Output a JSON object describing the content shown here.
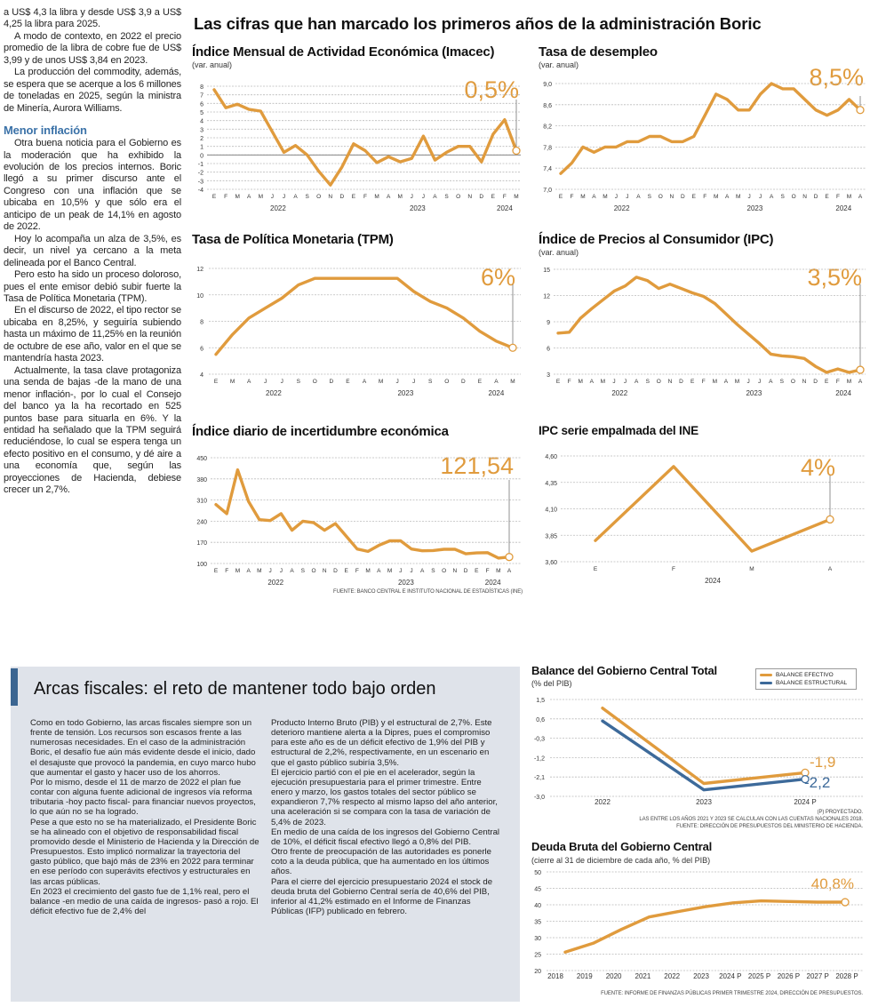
{
  "left_column": {
    "paragraphs_before": [
      "a US$ 4,3 la libra y desde US$ 3,9 a US$ 4,25 la libra para 2025.",
      "A modo de contexto, en 2022 el precio promedio de la libra de cobre fue de US$ 3,99 y de unos US$ 3,84 en 2023.",
      "La producción del commodity, además, se espera que se acerque a los 6 millones de toneladas en 2025, según la ministra de Minería, Aurora Williams."
    ],
    "subheading": "Menor inflación",
    "paragraphs_after": [
      "Otra buena noticia para el Gobierno es la moderación que ha exhibido la evolución de los precios internos. Boric llegó a su primer discurso ante el Congreso con una inflación que se ubicaba en 10,5% y que sólo era el anticipo de un peak de 14,1% en agosto de 2022.",
      "Hoy lo acompaña un alza de 3,5%, es decir, un nivel ya cercano a la meta delineada por el Banco Central.",
      "Pero esto ha sido un proceso doloroso, pues el ente emisor debió subir fuerte la Tasa de Política Monetaria (TPM).",
      "En el discurso de 2022, el tipo rector se ubicaba en 8,25%, y seguiría subiendo hasta un máximo de 11,25% en la reunión de octubre de ese año, valor en el que se mantendría hasta 2023.",
      "Actualmente, la tasa clave protagoniza una senda de bajas -de la mano de una menor inflación-, por lo cual el Consejo del banco ya la ha recortado en 525 puntos base para situarla en 6%. Y la entidad ha señalado que la TPM seguirá reduciéndose, lo cual se espera tenga un efecto positivo en el consumo, y dé aire a una economía que, según las proyecciones de Hacienda, debiese crecer un 2,7%."
    ]
  },
  "headline": "Las cifras que han marcado los primeros años de la administración Boric",
  "colors": {
    "line": "#e09b3d",
    "structural": "#3d6a9a",
    "box_bg": "#dfe3ea",
    "accent": "#3b6591",
    "subheading": "#3b72a8"
  },
  "box": {
    "title": "Arcas fiscales: el reto de mantener todo bajo orden",
    "col1": [
      "Como en todo Gobierno, las arcas fiscales siempre son un frente de tensión. Los recursos son escasos frente a las numerosas necesidades. En el caso de la administración Boric, el desafío fue aún más evidente desde el inicio, dado el desajuste que provocó la pandemia, en cuyo marco hubo que aumentar el gasto y hacer uso de los ahorros.",
      "Por lo mismo, desde el 11 de marzo de 2022 el plan fue contar con alguna fuente adicional de ingresos vía reforma tributaria -hoy pacto fiscal- para financiar nuevos proyectos, lo que aún no se ha logrado.",
      "Pese a que esto no se ha materializado, el Presidente Boric se ha alineado con el objetivo de responsabilidad fiscal promovido desde el Ministerio de Hacienda y la Dirección de Presupuestos. Esto implicó normalizar la trayectoria del gasto público, que bajó más de 23% en 2022 para terminar en ese período con superávits efectivos y estructurales en las arcas públicas.",
      "En 2023 el crecimiento del gasto fue de 1,1% real, pero el balance -en medio de una caída de ingresos- pasó a rojo. El déficit efectivo fue de 2,4% del"
    ],
    "col2": [
      "Producto Interno Bruto (PIB) y el estructural de 2,7%. Este deterioro mantiene alerta a la Dipres, pues el compromiso para este año es de un déficit efectivo de 1,9% del PIB y estructural de 2,2%, respectivamente, en un escenario en que el gasto público subiría 3,5%.",
      "El ejercicio partió con el pie en el acelerador, según la ejecución presupuestaria para el primer trimestre. Entre enero y marzo, los gastos totales del sector público se expandieron 7,7% respecto al mismo lapso del año anterior, una aceleración si se compara con la tasa de variación de 5,4% de 2023.",
      "En medio de una caída de los ingresos del Gobierno Central de 10%, el déficit fiscal efectivo llegó a 0,8% del PIB.",
      "Otro frente de preocupación de las autoridades es ponerle coto a la deuda pública, que ha aumentado en los últimos años.",
      "Para el cierre del ejercicio presupuestario 2024 el stock de deuda bruta del Gobierno Central sería de 40,6% del PIB, inferior al 41,2% estimado en el Informe de Finanzas Públicas (IFP) publicado en febrero."
    ]
  },
  "chart_data": [
    {
      "type": "line",
      "title": "Índice Mensual de Actividad Económica (Imacec)",
      "subtitle": "(var. anual)",
      "callout": "0,5%",
      "ylim": [
        -4,
        8
      ],
      "yticks": [
        8,
        7,
        6,
        5,
        4,
        3,
        2,
        1,
        0,
        -1,
        -2,
        -3,
        -4
      ],
      "ytick_labels": [
        "8",
        "7",
        "6",
        "5",
        "4",
        "3",
        "2",
        "1",
        "0",
        "-1",
        "-2",
        "-3",
        "-4"
      ],
      "x": [
        "E",
        "F",
        "M",
        "A",
        "M",
        "J",
        "J",
        "A",
        "S",
        "O",
        "N",
        "D",
        "E",
        "F",
        "M",
        "A",
        "M",
        "J",
        "J",
        "A",
        "S",
        "O",
        "N",
        "D",
        "E",
        "F",
        "M"
      ],
      "years": [
        {
          "label": "2022",
          "from": 0,
          "to": 11
        },
        {
          "label": "2023",
          "from": 12,
          "to": 23
        },
        {
          "label": "2024",
          "from": 24,
          "to": 26
        }
      ],
      "values": [
        7.6,
        5.5,
        5.9,
        5.3,
        5.1,
        2.7,
        0.3,
        1.1,
        0.0,
        -1.9,
        -3.5,
        -1.4,
        1.3,
        0.5,
        -0.9,
        -0.2,
        -0.8,
        -0.4,
        2.2,
        -0.6,
        0.3,
        1.0,
        1.0,
        -0.8,
        2.4,
        4.1,
        0.5
      ],
      "zero_line": true,
      "grid": true
    },
    {
      "type": "line",
      "title": "Tasa de desempleo",
      "subtitle": "(var. anual)",
      "callout": "8,5%",
      "ylim": [
        7.0,
        9.0
      ],
      "yticks": [
        9.0,
        8.6,
        8.2,
        7.8,
        7.4,
        7.0
      ],
      "ytick_labels": [
        "9,0",
        "8,6",
        "8,2",
        "7,8",
        "7,4",
        "7,0"
      ],
      "x": [
        "E",
        "F",
        "M",
        "A",
        "M",
        "J",
        "J",
        "A",
        "S",
        "O",
        "N",
        "D",
        "E",
        "F",
        "M",
        "A",
        "M",
        "J",
        "J",
        "A",
        "S",
        "O",
        "N",
        "D",
        "E",
        "F",
        "M",
        "A"
      ],
      "years": [
        {
          "label": "2022",
          "from": 0,
          "to": 11
        },
        {
          "label": "2023",
          "from": 12,
          "to": 23
        },
        {
          "label": "2024",
          "from": 24,
          "to": 27
        }
      ],
      "values": [
        7.3,
        7.5,
        7.8,
        7.7,
        7.8,
        7.8,
        7.9,
        7.9,
        8.0,
        8.0,
        7.9,
        7.9,
        8.0,
        8.4,
        8.8,
        8.7,
        8.5,
        8.5,
        8.8,
        9.0,
        8.9,
        8.9,
        8.7,
        8.5,
        8.4,
        8.5,
        8.7,
        8.5
      ],
      "grid": true
    },
    {
      "type": "line",
      "title": "Tasa de Política Monetaria (TPM)",
      "subtitle": "",
      "callout": "6%",
      "ylim": [
        4,
        12
      ],
      "yticks": [
        12,
        10,
        8,
        6,
        4
      ],
      "ytick_labels": [
        "12",
        "10",
        "8",
        "6",
        "4"
      ],
      "x": [
        "E",
        "M",
        "A",
        "J",
        "J",
        "S",
        "O",
        "D",
        "E",
        "A",
        "M",
        "J",
        "J",
        "S",
        "O",
        "D",
        "E",
        "A",
        "M"
      ],
      "years": [
        {
          "label": "2022",
          "from": 0,
          "to": 7
        },
        {
          "label": "2023",
          "from": 8,
          "to": 15
        },
        {
          "label": "2024",
          "from": 16,
          "to": 18
        }
      ],
      "values": [
        5.5,
        7.0,
        8.25,
        9.0,
        9.75,
        10.75,
        11.25,
        11.25,
        11.25,
        11.25,
        11.25,
        11.25,
        10.25,
        9.5,
        9.0,
        8.25,
        7.25,
        6.5,
        6.0
      ],
      "grid": true
    },
    {
      "type": "line",
      "title": "Índice de Precios al Consumidor (IPC)",
      "subtitle": "(var. anual)",
      "callout": "3,5%",
      "ylim": [
        3,
        15
      ],
      "yticks": [
        15,
        12,
        9,
        6,
        3
      ],
      "ytick_labels": [
        "15",
        "12",
        "9",
        "6",
        "3"
      ],
      "x": [
        "E",
        "F",
        "M",
        "A",
        "M",
        "J",
        "J",
        "A",
        "S",
        "O",
        "N",
        "D",
        "E",
        "F",
        "M",
        "A",
        "M",
        "J",
        "J",
        "A",
        "S",
        "O",
        "N",
        "D",
        "E",
        "F",
        "M",
        "A"
      ],
      "years": [
        {
          "label": "2022",
          "from": 0,
          "to": 11
        },
        {
          "label": "2023",
          "from": 12,
          "to": 23
        },
        {
          "label": "2024",
          "from": 24,
          "to": 27
        }
      ],
      "values": [
        7.7,
        7.8,
        9.4,
        10.5,
        11.5,
        12.5,
        13.1,
        14.1,
        13.7,
        12.8,
        13.3,
        12.8,
        12.3,
        11.9,
        11.1,
        9.9,
        8.7,
        7.6,
        6.5,
        5.3,
        5.1,
        5.0,
        4.8,
        3.9,
        3.2,
        3.6,
        3.2,
        3.5
      ],
      "grid": true
    },
    {
      "type": "line",
      "title": "Índice diario de incertidumbre económica",
      "subtitle": "",
      "callout": "121,54",
      "source": "FUENTE: BANCO CENTRAL E INSTITUTO NACIONAL DE ESTADÍSTICAS (INE)",
      "ylim": [
        100,
        450
      ],
      "yticks": [
        450,
        380,
        310,
        240,
        170,
        100
      ],
      "ytick_labels": [
        "450",
        "380",
        "310",
        "240",
        "170",
        "100"
      ],
      "x": [
        "E",
        "F",
        "M",
        "A",
        "M",
        "J",
        "J",
        "A",
        "S",
        "O",
        "N",
        "D",
        "E",
        "F",
        "M",
        "A",
        "M",
        "J",
        "J",
        "A",
        "S",
        "O",
        "N",
        "D",
        "E",
        "F",
        "M",
        "A"
      ],
      "years": [
        {
          "label": "2022",
          "from": 0,
          "to": 11
        },
        {
          "label": "2023",
          "from": 12,
          "to": 23
        },
        {
          "label": "2024",
          "from": 24,
          "to": 27
        }
      ],
      "values": [
        295,
        265,
        410,
        305,
        245,
        242,
        265,
        210,
        240,
        235,
        210,
        232,
        190,
        148,
        140,
        160,
        175,
        175,
        148,
        142,
        143,
        147,
        147,
        132,
        135,
        136,
        118,
        121.54
      ],
      "grid": true
    },
    {
      "type": "line",
      "title": "IPC serie empalmada del INE",
      "subtitle": "",
      "callout": "4%",
      "ylim": [
        3.6,
        4.6
      ],
      "yticks": [
        4.6,
        4.35,
        4.1,
        3.85,
        3.6
      ],
      "ytick_labels": [
        "4,60",
        "4,35",
        "4,10",
        "3,85",
        "3,60"
      ],
      "x": [
        "E",
        "F",
        "M",
        "A"
      ],
      "years": [
        {
          "label": "2024",
          "from": 0,
          "to": 3
        }
      ],
      "values": [
        3.8,
        4.5,
        3.7,
        4.0
      ],
      "grid": true
    },
    {
      "type": "line",
      "title": "Balance del Gobierno Central Total",
      "subtitle": "(% del PIB)",
      "legend_position": "top-right",
      "ylim": [
        -3.0,
        1.5
      ],
      "yticks": [
        1.5,
        0.6,
        -0.3,
        -1.2,
        -2.1,
        -3.0
      ],
      "ytick_labels": [
        "1,5",
        "0,6",
        "-0,3",
        "-1,2",
        "-2,1",
        "-3,0"
      ],
      "x": [
        "2022",
        "2023",
        "2024 P"
      ],
      "series": [
        {
          "name": "BALANCE EFECTIVO",
          "values": [
            1.1,
            -2.4,
            -1.9
          ],
          "end_label": "-1,9"
        },
        {
          "name": "BALANCE ESTRUCTURAL",
          "values": [
            0.5,
            -2.7,
            -2.2
          ],
          "end_label": "-2,2"
        }
      ],
      "notes": [
        "(P) PROYECTADO.",
        "LAS ENTRE LOS AÑOS 2021 Y 2023 SE CALCULAN CON LAS CUENTAS NACIONALES 2018.",
        "FUENTE: DIRECCIÓN DE PRESUPUESTOS DEL MINISTERIO DE HACIENDA."
      ],
      "grid": true
    },
    {
      "type": "line",
      "title": "Deuda Bruta del Gobierno Central",
      "subtitle": "(cierre al 31 de diciembre de cada año, % del PIB)",
      "callout": "40,8%",
      "source": "FUENTE: INFORME DE FINANZAS PÚBLICAS PRIMER TRIMESTRE 2024, DIRECCIÓN DE PRESUPUESTOS.",
      "ylim": [
        20,
        50
      ],
      "yticks": [
        50,
        45,
        40,
        35,
        30,
        25,
        20
      ],
      "ytick_labels": [
        "50",
        "45",
        "40",
        "35",
        "30",
        "25",
        "20"
      ],
      "x": [
        "2018",
        "2019",
        "2020",
        "2021",
        "2022",
        "2023",
        "2024 P",
        "2025 P",
        "2026 P",
        "2027 P",
        "2028 P"
      ],
      "values": [
        25.6,
        28.3,
        32.5,
        36.3,
        37.9,
        39.4,
        40.6,
        41.2,
        41.0,
        40.8,
        40.8
      ],
      "grid": true
    }
  ]
}
